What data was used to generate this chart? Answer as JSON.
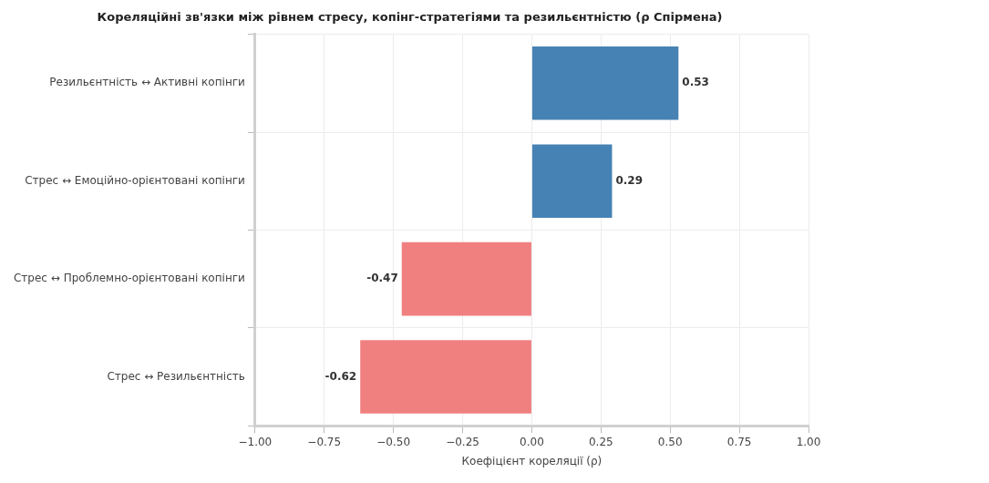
{
  "chart_data": {
    "type": "bar",
    "orientation": "horizontal",
    "title": "Кореляційні зв'язки між рівнем стресу, копінг-стратегіями та резильєнтністю (ρ Спірмена)",
    "xlabel": "Коефіцієнт кореляції (ρ)",
    "categories": [
      "Резильєнтність ↔ Активні копінги",
      "Стрес ↔ Емоційно-орієнтовані копінги",
      "Стрес ↔ Проблемно-орієнтовані копінги",
      "Стрес ↔ Резильєнтність"
    ],
    "values": [
      0.53,
      0.29,
      -0.47,
      -0.62
    ],
    "colors": [
      "#4682b4",
      "#4682b4",
      "#f08080",
      "#f08080"
    ],
    "xlim": [
      -1,
      1
    ],
    "xticks": [
      {
        "value": -1,
        "label": "−1.00"
      },
      {
        "value": -0.75,
        "label": "−0.75"
      },
      {
        "value": -0.5,
        "label": "−0.50"
      },
      {
        "value": -0.25,
        "label": "−0.25"
      },
      {
        "value": 0,
        "label": "0.00"
      },
      {
        "value": 0.25,
        "label": "0.25"
      },
      {
        "value": 0.5,
        "label": "0.50"
      },
      {
        "value": 0.75,
        "label": "0.75"
      },
      {
        "value": 1,
        "label": "1.00"
      }
    ],
    "grid": true,
    "data_labels": true
  }
}
